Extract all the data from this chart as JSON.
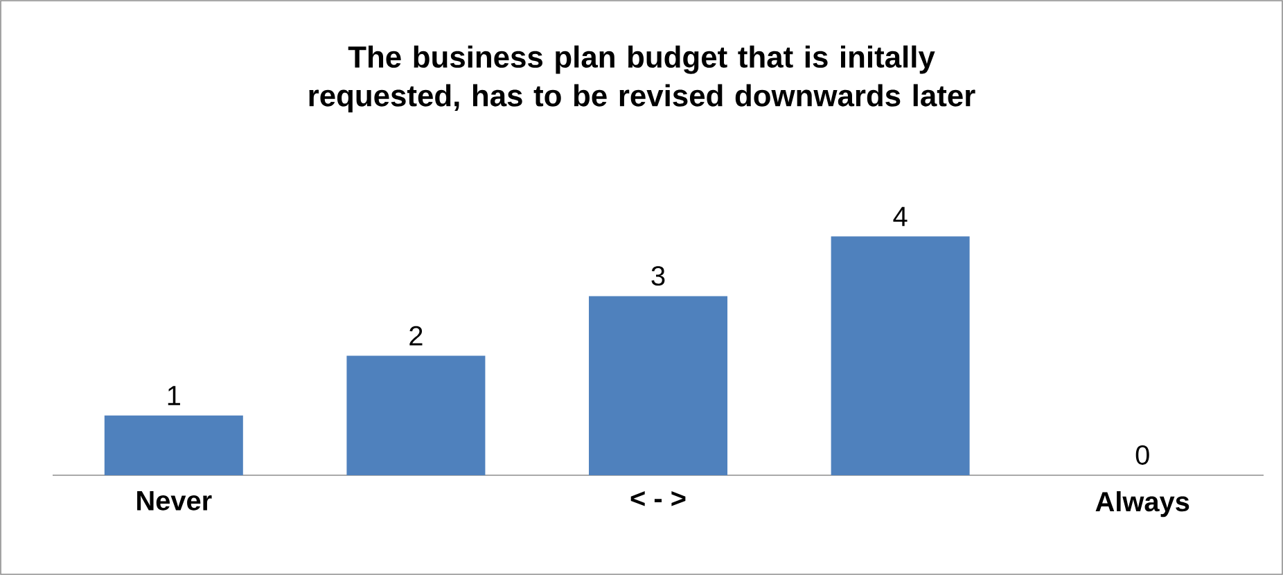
{
  "chart_data": {
    "type": "bar",
    "title": "The business plan budget that is initally requested, has to be revised downwards later",
    "categories": [
      "Never",
      null,
      "< - >",
      null,
      "Always"
    ],
    "values": [
      1,
      2,
      3,
      4,
      0
    ],
    "color": "#4f81bd",
    "data_labels": true
  }
}
